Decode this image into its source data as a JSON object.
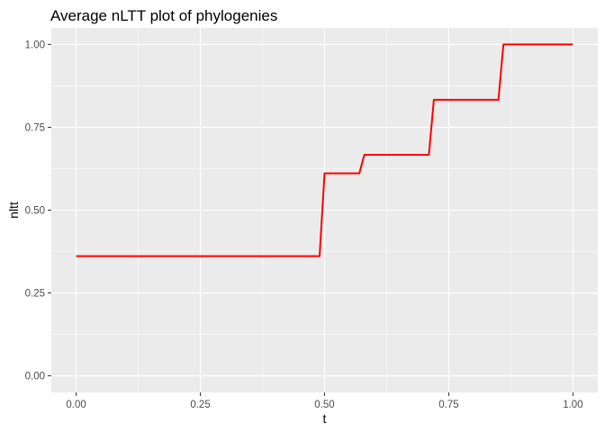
{
  "chart_data": {
    "type": "line",
    "title": "Average nLTT plot of phylogenies",
    "xlabel": "t",
    "ylabel": "nltt",
    "xlim": [
      -0.05,
      1.05
    ],
    "ylim": [
      -0.05,
      1.05
    ],
    "x_ticks": [
      0,
      0.25,
      0.5,
      0.75,
      1
    ],
    "x_tick_labels": [
      "0.00",
      "0.25",
      "0.50",
      "0.75",
      "1.00"
    ],
    "y_ticks": [
      0,
      0.25,
      0.5,
      0.75,
      1
    ],
    "y_tick_labels": [
      "0.00",
      "0.25",
      "0.50",
      "0.75",
      "1.00"
    ],
    "grid": true,
    "panel_background": "#ebebeb",
    "grid_major_color": "#ffffff",
    "series": [
      {
        "color": "#ff0000",
        "x": [
          0.0,
          0.49,
          0.5,
          0.57,
          0.58,
          0.71,
          0.72,
          0.85,
          0.86,
          1.0
        ],
        "y": [
          0.361,
          0.361,
          0.611,
          0.611,
          0.667,
          0.667,
          0.833,
          0.833,
          1.0,
          1.0
        ]
      }
    ]
  }
}
